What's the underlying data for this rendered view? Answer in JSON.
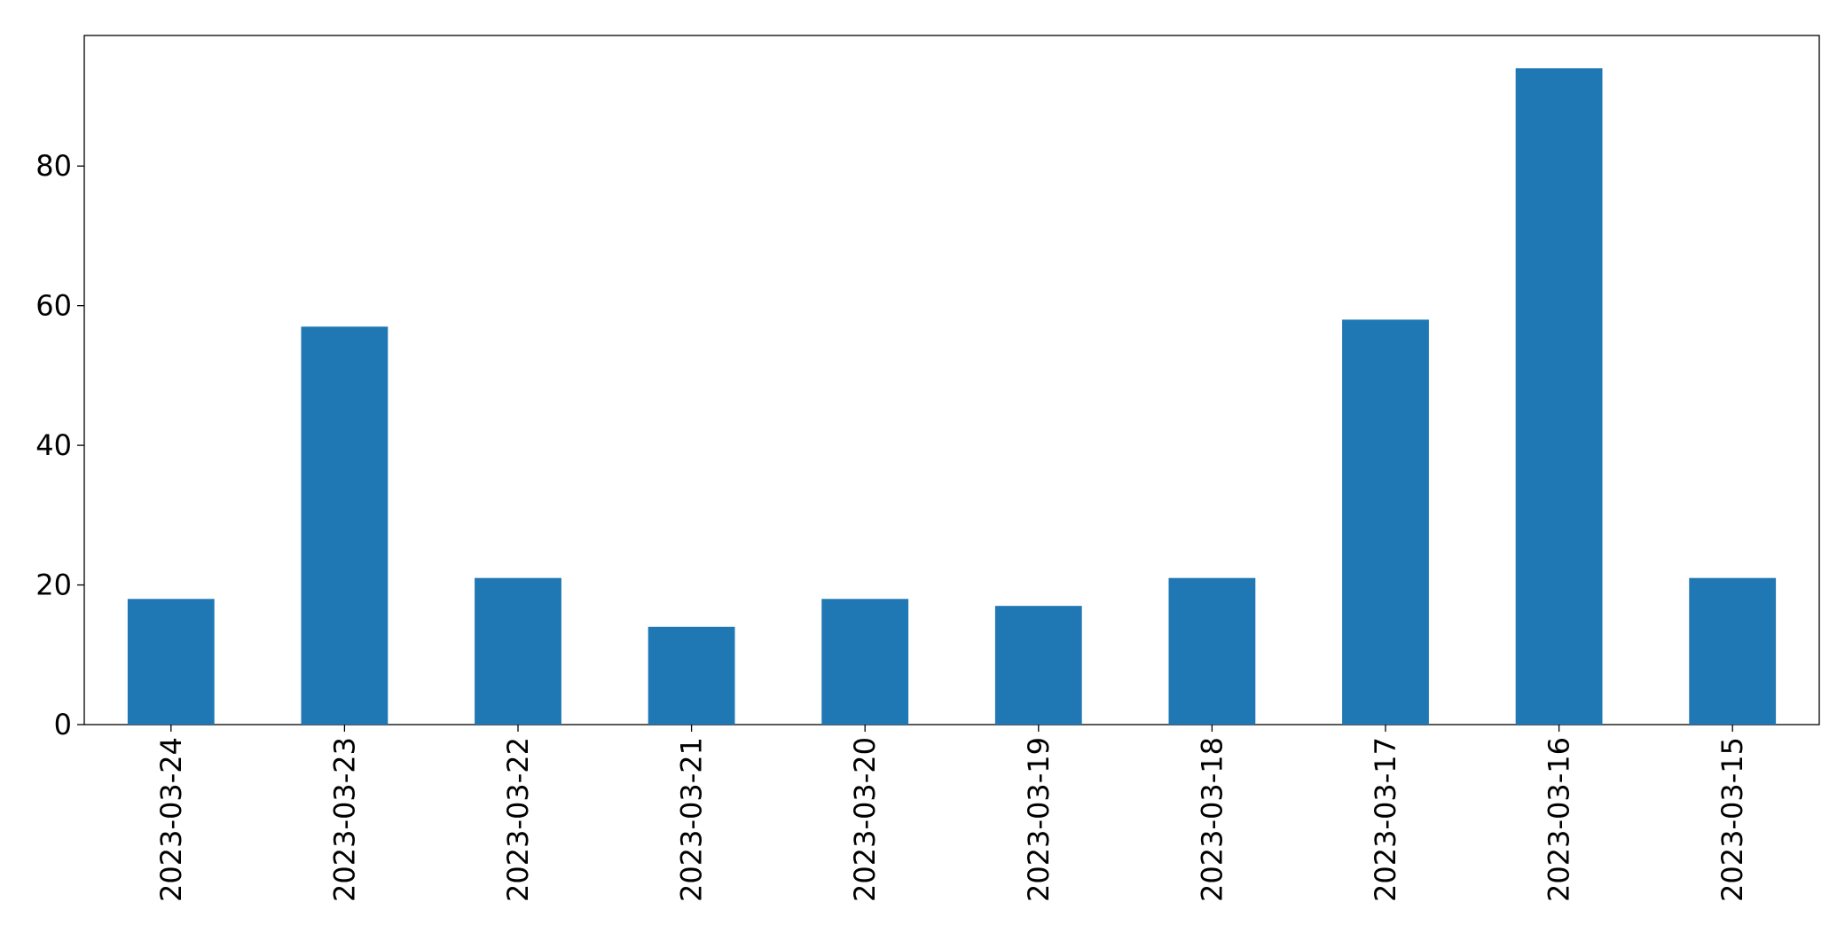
{
  "chart_data": {
    "type": "bar",
    "categories": [
      "2023-03-24",
      "2023-03-23",
      "2023-03-22",
      "2023-03-21",
      "2023-03-20",
      "2023-03-19",
      "2023-03-18",
      "2023-03-17",
      "2023-03-16",
      "2023-03-15"
    ],
    "values": [
      18,
      57,
      21,
      14,
      18,
      17,
      21,
      58,
      94,
      21
    ],
    "color": "#1f77b4",
    "ylim": [
      0,
      98.7
    ],
    "yticks": [
      0,
      20,
      40,
      60,
      80
    ],
    "grid": false
  }
}
